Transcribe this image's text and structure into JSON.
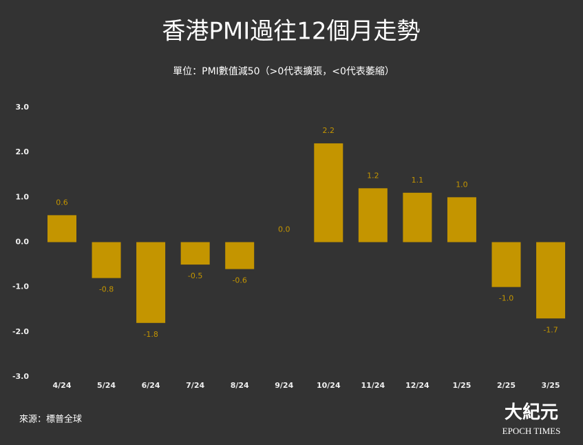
{
  "chart_data": {
    "type": "bar",
    "title": "香港PMI過往12個月走勢",
    "subtitle": "單位：PMI數值減50（>0代表擴張，<0代表萎縮）",
    "source": "來源：標普全球",
    "logo": {
      "name": "大紀元",
      "tagline": "EPOCH TIMES"
    },
    "categories": [
      "4/24",
      "5/24",
      "6/24",
      "7/24",
      "8/24",
      "9/24",
      "10/24",
      "11/24",
      "12/24",
      "1/25",
      "2/25",
      "3/25"
    ],
    "values": [
      0.6,
      -0.8,
      -1.8,
      -0.5,
      -0.6,
      0,
      2.2,
      1.2,
      1.1,
      1,
      -1,
      -1.7
    ],
    "value_labels": [
      "0.6",
      "-0.8",
      "-1.8",
      "-0.5",
      "-0.6",
      "0.0",
      "2.2",
      "1.2",
      "1.1",
      "1.0",
      "-1.0",
      "-1.7"
    ],
    "color": "#c49500",
    "ylim": [
      -3,
      3
    ],
    "yticks": [
      {
        "value": 3,
        "label": "3.0"
      },
      {
        "value": 2,
        "label": "2.0"
      },
      {
        "value": 1,
        "label": "1.0"
      },
      {
        "value": 0,
        "label": "0.0"
      },
      {
        "value": -1,
        "label": "-1.0"
      },
      {
        "value": -2,
        "label": "-2.0"
      },
      {
        "value": -3,
        "label": "-3.0"
      }
    ],
    "grid": false
  }
}
